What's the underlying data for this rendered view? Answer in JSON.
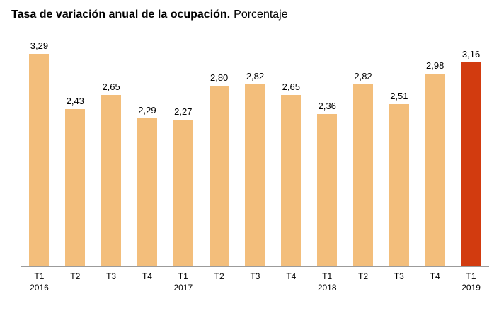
{
  "title": {
    "bold": "Tasa de variación anual de la ocupación.",
    "subtitle_text": "Porcentaje"
  },
  "chart_data": {
    "type": "bar",
    "title": "Tasa de variación anual de la ocupación.",
    "subtitle": "Porcentaje",
    "categories": [
      "T1 2016",
      "T2 2016",
      "T3 2016",
      "T4 2016",
      "T1 2017",
      "T2 2017",
      "T3 2017",
      "T4 2017",
      "T1 2018",
      "T2 2018",
      "T3 2018",
      "T4 2018",
      "T1 2019"
    ],
    "tick_labels": [
      "T1",
      "T2",
      "T3",
      "T4",
      "T1",
      "T2",
      "T3",
      "T4",
      "T1",
      "T2",
      "T3",
      "T4",
      "T1"
    ],
    "year_labels": [
      "2016",
      "",
      "",
      "",
      "2017",
      "",
      "",
      "",
      "2018",
      "",
      "",
      "",
      "2019"
    ],
    "values": [
      3.29,
      2.43,
      2.65,
      2.29,
      2.27,
      2.8,
      2.82,
      2.65,
      2.36,
      2.82,
      2.51,
      2.98,
      3.16
    ],
    "value_labels": [
      "3,29",
      "2,43",
      "2,65",
      "2,29",
      "2,27",
      "2,80",
      "2,82",
      "2,65",
      "2,36",
      "2,82",
      "2,51",
      "2,98",
      "3,16"
    ],
    "highlight_index": 12,
    "bar_color": "#F3BE7B",
    "highlight_color": "#D23B0F",
    "axis_line_color": "#9b9b9b",
    "ylim": [
      0,
      3.29
    ],
    "grid": false,
    "legend": false,
    "xlabel": "",
    "ylabel": ""
  }
}
